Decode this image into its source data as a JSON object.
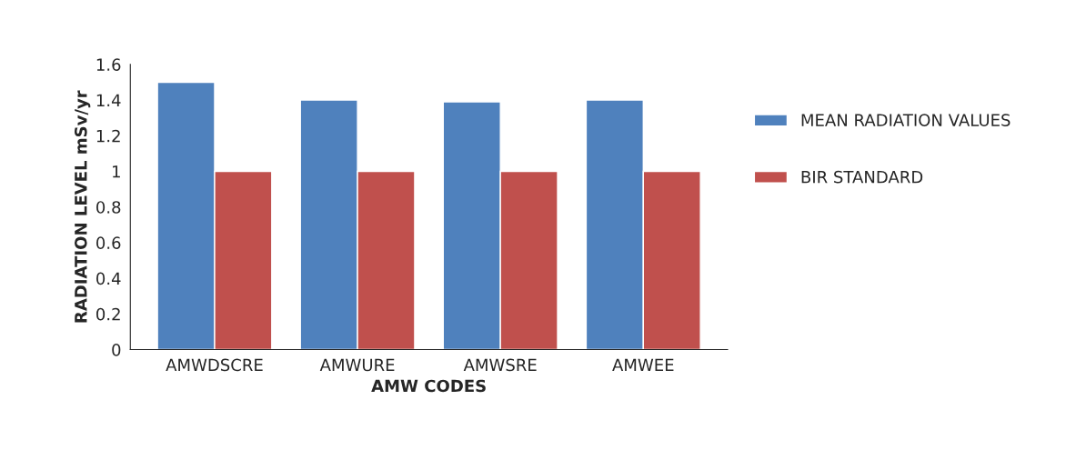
{
  "chart_data": {
    "type": "bar",
    "xlabel": "AMW CODES",
    "ylabel": "RADIATION LEVEL mSv/yr",
    "categories": [
      "AMWDSCRE",
      "AMWURE",
      "AMWSRE",
      "AMWEE"
    ],
    "series": [
      {
        "name": "MEAN RADIATION VALUES",
        "color": "#4f81bd",
        "values": [
          1.5,
          1.4,
          1.39,
          1.4
        ]
      },
      {
        "name": "BIR STANDARD",
        "color": "#c0504d",
        "values": [
          1,
          1,
          1,
          1
        ]
      }
    ],
    "ylim": [
      0,
      1.6
    ],
    "yticks": [
      0,
      0.2,
      0.4,
      0.6,
      0.8,
      1,
      1.2,
      1.4,
      1.6
    ],
    "grid": false,
    "legend": "right"
  }
}
